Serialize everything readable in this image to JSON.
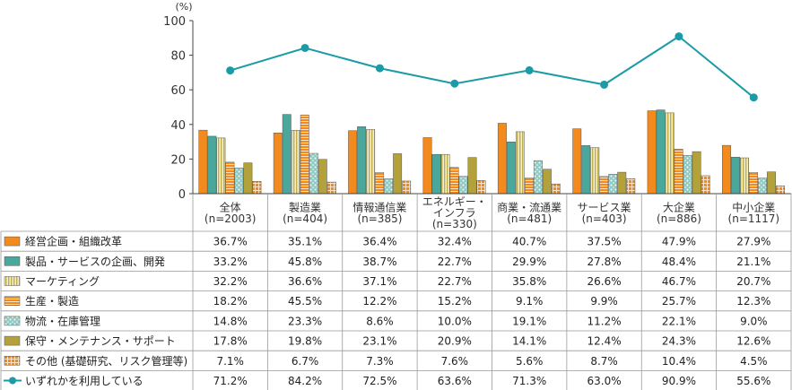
{
  "chart_data": {
    "type": "bar",
    "unit_label": "(%)",
    "ylim": [
      0,
      100
    ],
    "yticks": [
      0,
      20,
      40,
      60,
      80,
      100
    ],
    "grid": false,
    "legend": "table-left",
    "categories": [
      [
        "全体",
        "(n=2003)"
      ],
      [
        "製造業",
        "(n=404)"
      ],
      [
        "情報通信業",
        "(n=385)"
      ],
      [
        "エネルギー・",
        "インフラ",
        "(n=330)"
      ],
      [
        "商業・流通業",
        "(n=481)"
      ],
      [
        "サービス業",
        "(n=403)"
      ],
      [
        "大企業",
        "(n=886)"
      ],
      [
        "中小企業",
        "(n=1117)"
      ]
    ],
    "series": [
      {
        "name": "経営企画・組織改革",
        "type": "bar",
        "color": "#f28a1e",
        "pattern": "solid",
        "values": [
          36.7,
          35.1,
          36.4,
          32.4,
          40.7,
          37.5,
          47.9,
          27.9
        ],
        "labels": [
          "36.7%",
          "35.1%",
          "36.4%",
          "32.4%",
          "40.7%",
          "37.5%",
          "47.9%",
          "27.9%"
        ]
      },
      {
        "name": "製品・サービスの企画、開発",
        "type": "bar",
        "color": "#4aa79c",
        "pattern": "solid",
        "values": [
          33.2,
          45.8,
          38.7,
          22.7,
          29.9,
          27.8,
          48.4,
          21.1
        ],
        "labels": [
          "33.2%",
          "45.8%",
          "38.7%",
          "22.7%",
          "29.9%",
          "27.8%",
          "48.4%",
          "21.1%"
        ]
      },
      {
        "name": "マーケティング",
        "type": "bar",
        "color": "#d8cc78",
        "pattern": "vstripe",
        "values": [
          32.2,
          36.6,
          37.1,
          22.7,
          35.8,
          26.6,
          46.7,
          20.7
        ],
        "labels": [
          "32.2%",
          "36.6%",
          "37.1%",
          "22.7%",
          "35.8%",
          "26.6%",
          "46.7%",
          "20.7%"
        ]
      },
      {
        "name": "生産・製造",
        "type": "bar",
        "color": "#f5a45a",
        "pattern": "hstripe",
        "values": [
          18.2,
          45.5,
          12.2,
          15.2,
          9.1,
          9.9,
          25.7,
          12.3
        ],
        "labels": [
          "18.2%",
          "45.5%",
          "12.2%",
          "15.2%",
          "9.1%",
          "9.9%",
          "25.7%",
          "12.3%"
        ]
      },
      {
        "name": "物流・在庫管理",
        "type": "bar",
        "color": "#9fd2cc",
        "pattern": "dots",
        "values": [
          14.8,
          23.3,
          8.6,
          10.0,
          19.1,
          11.2,
          22.1,
          9.0
        ],
        "labels": [
          "14.8%",
          "23.3%",
          "8.6%",
          "10.0%",
          "19.1%",
          "11.2%",
          "22.1%",
          "9.0%"
        ]
      },
      {
        "name": "保守・メンテナンス・サポート",
        "type": "bar",
        "color": "#b3a23c",
        "pattern": "solid",
        "values": [
          17.8,
          19.8,
          23.1,
          20.9,
          14.1,
          12.4,
          24.3,
          12.6
        ],
        "labels": [
          "17.8%",
          "19.8%",
          "23.1%",
          "20.9%",
          "14.1%",
          "12.4%",
          "24.3%",
          "12.6%"
        ]
      },
      {
        "name": "その他 (基礎研究、リスク管理等)",
        "type": "bar",
        "color": "#f7b477",
        "pattern": "grid",
        "values": [
          7.1,
          6.7,
          7.3,
          7.6,
          5.6,
          8.7,
          10.4,
          4.5
        ],
        "labels": [
          "7.1%",
          "6.7%",
          "7.3%",
          "7.6%",
          "5.6%",
          "8.7%",
          "10.4%",
          "4.5%"
        ]
      },
      {
        "name": "いずれかを利用している",
        "type": "line",
        "color": "#1a9ba6",
        "pattern": "line",
        "values": [
          71.2,
          84.2,
          72.5,
          63.6,
          71.3,
          63.0,
          90.9,
          55.6
        ],
        "labels": [
          "71.2%",
          "84.2%",
          "72.5%",
          "63.6%",
          "71.3%",
          "63.0%",
          "90.9%",
          "55.6%"
        ]
      }
    ]
  }
}
